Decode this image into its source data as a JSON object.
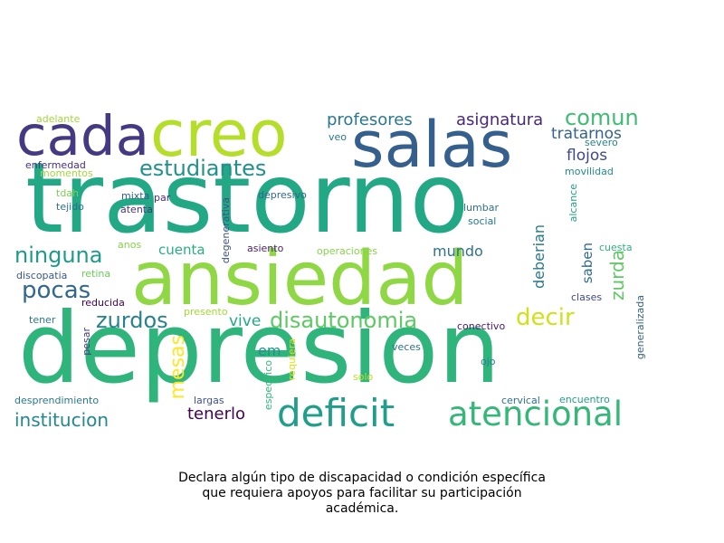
{
  "caption": "Declara algún tipo de discapacidad o condición específica\nque requiera apoyos para facilitar su participación\nacadémica.",
  "words": [
    {
      "text": "trastorno",
      "color": "#22a884"
    },
    {
      "text": "depresion",
      "color": "#2fb47c"
    },
    {
      "text": "ansiedad",
      "color": "#8fd744"
    },
    {
      "text": "salas",
      "color": "#355f8d"
    },
    {
      "text": "creo",
      "color": "#b5de2b"
    },
    {
      "text": "cada",
      "color": "#443983"
    },
    {
      "text": "deficit",
      "color": "#1f9e89"
    },
    {
      "text": "atencional",
      "color": "#35b779"
    },
    {
      "text": "estudiantes",
      "color": "#21918c"
    },
    {
      "text": "ninguna",
      "color": "#1f9a8a"
    },
    {
      "text": "pocas",
      "color": "#31688e"
    },
    {
      "text": "zurdos",
      "color": "#26828e"
    },
    {
      "text": "disautonomia",
      "color": "#5ec962"
    },
    {
      "text": "decir",
      "color": "#d0e11c"
    },
    {
      "text": "institucion",
      "color": "#23888e"
    },
    {
      "text": "mesas",
      "color": "#fde725"
    },
    {
      "text": "tenerlo",
      "color": "#440154"
    },
    {
      "text": "profesores",
      "color": "#2a788e"
    },
    {
      "text": "asignatura",
      "color": "#482878"
    },
    {
      "text": "comun",
      "color": "#3fbc73"
    },
    {
      "text": "tratarnos",
      "color": "#33638d"
    },
    {
      "text": "flojos",
      "color": "#3e4989"
    },
    {
      "text": "mundo",
      "color": "#2c728e"
    },
    {
      "text": "cuenta",
      "color": "#29af7f"
    },
    {
      "text": "vive",
      "color": "#22a884"
    },
    {
      "text": "em",
      "color": "#21918c"
    },
    {
      "text": "deberian",
      "color": "#2a788e"
    },
    {
      "text": "zurda",
      "color": "#5ec962"
    },
    {
      "text": "saben",
      "color": "#2f6b8e"
    },
    {
      "text": "adelante",
      "color": "#a0da39"
    },
    {
      "text": "enfermedad",
      "color": "#46327e"
    },
    {
      "text": "momentos",
      "color": "#a0da39"
    },
    {
      "text": "tdah",
      "color": "#7ad151"
    },
    {
      "text": "tejido",
      "color": "#2d708e"
    },
    {
      "text": "mixta",
      "color": "#365c8d"
    },
    {
      "text": "par",
      "color": "#472d7b"
    },
    {
      "text": "atenta",
      "color": "#46327e"
    },
    {
      "text": "depresivo",
      "color": "#31688e"
    },
    {
      "text": "lumbar",
      "color": "#2c728e"
    },
    {
      "text": "social",
      "color": "#2a788e"
    },
    {
      "text": "veo",
      "color": "#2a788e"
    },
    {
      "text": "severo",
      "color": "#26828e"
    },
    {
      "text": "movilidad",
      "color": "#228c8d"
    },
    {
      "text": "alcance",
      "color": "#1fa088"
    },
    {
      "text": "cuesta",
      "color": "#2db27d"
    },
    {
      "text": "anos",
      "color": "#84d44b"
    },
    {
      "text": "asiento",
      "color": "#481f70"
    },
    {
      "text": "operaciones",
      "color": "#86d549"
    },
    {
      "text": "discopatia",
      "color": "#38598c"
    },
    {
      "text": "retina",
      "color": "#6ccd5a"
    },
    {
      "text": "reducida",
      "color": "#440154"
    },
    {
      "text": "degenerativa",
      "color": "#3b528b"
    },
    {
      "text": "presento",
      "color": "#a2da37"
    },
    {
      "text": "clases",
      "color": "#3e4a89"
    },
    {
      "text": "generalizada",
      "color": "#33628d"
    },
    {
      "text": "tener",
      "color": "#2a788e"
    },
    {
      "text": "conectivo",
      "color": "#481b6d"
    },
    {
      "text": "pesar",
      "color": "#453882"
    },
    {
      "text": "requiera",
      "color": "#dde318"
    },
    {
      "text": "veces",
      "color": "#2c728e"
    },
    {
      "text": "ojo",
      "color": "#277f8e"
    },
    {
      "text": "especifico",
      "color": "#35b779"
    },
    {
      "text": "solo",
      "color": "#bddf26"
    },
    {
      "text": "desprendimiento",
      "color": "#29798e"
    },
    {
      "text": "largas",
      "color": "#3b528b"
    },
    {
      "text": "cervical",
      "color": "#2d708e"
    },
    {
      "text": "encuentro",
      "color": "#1f9e89"
    }
  ]
}
